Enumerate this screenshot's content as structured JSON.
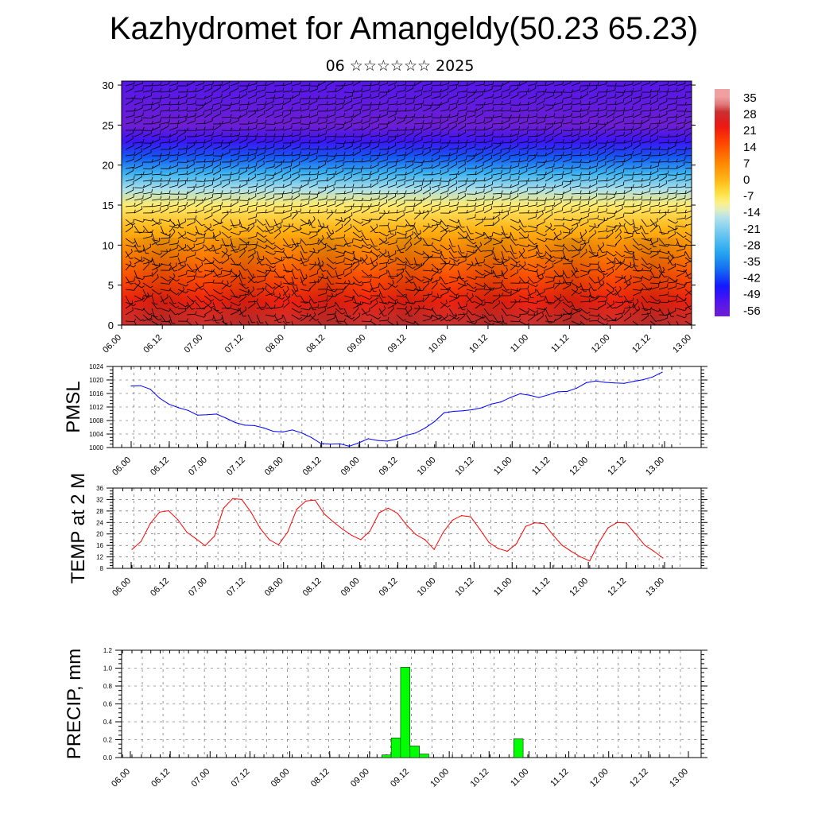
{
  "header": {
    "title": "Kazhydromet for Amangeldy(50.23 65.23)",
    "subtitle": "06 ☆☆☆☆☆☆ 2025"
  },
  "chart_data": [
    {
      "type": "heatmap",
      "title": "",
      "xlabel": "",
      "ylabel": "",
      "x_ticks": [
        "06.00",
        "06.12",
        "07.00",
        "07.12",
        "08.00",
        "08.12",
        "09.00",
        "09.12",
        "10.00",
        "10.12",
        "11.00",
        "11.12",
        "12.00",
        "12.12",
        "13.00"
      ],
      "y_ticks": [
        0,
        5,
        10,
        15,
        20,
        25,
        30
      ],
      "ylim": [
        0,
        30.5
      ],
      "colorbar_labels": [
        35,
        28,
        21,
        14,
        7,
        0,
        -7,
        -14,
        -21,
        -28,
        -35,
        -42,
        -49,
        -56
      ],
      "temperature_by_height": [
        {
          "h": 0,
          "t": 30
        },
        {
          "h": 3,
          "t": 22
        },
        {
          "h": 6,
          "t": 15
        },
        {
          "h": 9,
          "t": 8
        },
        {
          "h": 12,
          "t": 0
        },
        {
          "h": 15,
          "t": -9
        },
        {
          "h": 17,
          "t": -18
        },
        {
          "h": 19,
          "t": -30
        },
        {
          "h": 21,
          "t": -42
        },
        {
          "h": 23,
          "t": -52
        },
        {
          "h": 25,
          "t": -60
        },
        {
          "h": 27,
          "t": -58
        },
        {
          "h": 30.5,
          "t": -55
        }
      ],
      "overlay": "wind barbs"
    },
    {
      "type": "line",
      "ylabel": "PMSL",
      "x_ticks": [
        "06.00",
        "06.12",
        "07.00",
        "07.12",
        "08.00",
        "08.12",
        "09.00",
        "09.12",
        "10.00",
        "10.12",
        "11.00",
        "11.12",
        "12.00",
        "12.12",
        "13.00"
      ],
      "y_ticks": [
        1000,
        1004,
        1008,
        1012,
        1016,
        1020,
        1024
      ],
      "ylim": [
        1000,
        1024
      ],
      "grid": true,
      "color": "#0000ff",
      "values": [
        1018.2,
        1018.3,
        1017.3,
        1014.6,
        1012.8,
        1011.8,
        1011.0,
        1009.6,
        1009.7,
        1009.9,
        1008.7,
        1007.4,
        1006.6,
        1006.5,
        1005.8,
        1004.8,
        1004.6,
        1005.2,
        1004.3,
        1003.0,
        1001.2,
        1001.0,
        1001.1,
        1000.4,
        1001.4,
        1002.6,
        1002.1,
        1001.9,
        1002.5,
        1003.6,
        1004.3,
        1005.8,
        1007.7,
        1010.3,
        1010.7,
        1010.9,
        1011.2,
        1011.8,
        1012.9,
        1013.5,
        1014.8,
        1015.9,
        1015.5,
        1014.8,
        1015.6,
        1016.5,
        1016.6,
        1017.6,
        1019.2,
        1019.7,
        1019.3,
        1019.1,
        1019.0,
        1019.6,
        1020.1,
        1020.9,
        1022.3
      ]
    },
    {
      "type": "line",
      "ylabel": "TEMP at 2 M",
      "x_ticks": [
        "06.00",
        "06.12",
        "07.00",
        "07.12",
        "08.00",
        "08.12",
        "09.00",
        "09.12",
        "10.00",
        "10.12",
        "11.00",
        "11.12",
        "12.00",
        "12.12",
        "13.00"
      ],
      "y_ticks": [
        8,
        12,
        16,
        20,
        24,
        28,
        32,
        36
      ],
      "ylim": [
        8,
        36
      ],
      "grid": true,
      "color": "#ff0000",
      "values": [
        14.6,
        17.4,
        23.6,
        27.6,
        28.1,
        25.0,
        20.6,
        18.3,
        15.9,
        19.2,
        29.0,
        32.3,
        32.0,
        27.6,
        22.0,
        18.0,
        16.2,
        20.6,
        28.6,
        31.5,
        31.8,
        27.0,
        24.2,
        21.7,
        19.5,
        18.0,
        21.0,
        27.4,
        29.0,
        27.2,
        23.1,
        19.8,
        18.0,
        14.6,
        20.6,
        24.8,
        26.4,
        26.0,
        21.6,
        17.0,
        14.9,
        14.0,
        16.6,
        22.6,
        23.9,
        23.6,
        19.6,
        16.0,
        13.9,
        12.0,
        10.6,
        17.0,
        22.1,
        24.0,
        23.8,
        20.0,
        16.1,
        14.0,
        11.6
      ]
    },
    {
      "type": "bar",
      "ylabel": "PRECIP, mm",
      "x_ticks": [
        "06.00",
        "06.12",
        "07.00",
        "07.12",
        "08.00",
        "08.12",
        "09.00",
        "09.12",
        "10.00",
        "10.12",
        "11.00",
        "11.12",
        "12.00",
        "12.12",
        "13.00"
      ],
      "y_ticks": [
        "0.0",
        "0.2",
        "0.4",
        "0.6",
        "0.8",
        "1.0",
        "1.2"
      ],
      "ylim": [
        0,
        1.2
      ],
      "grid": true,
      "color": "#00ff00",
      "values": [
        0,
        0,
        0,
        0,
        0,
        0,
        0,
        0,
        0,
        0,
        0,
        0,
        0,
        0,
        0,
        0,
        0,
        0,
        0,
        0,
        0,
        0,
        0,
        0,
        0,
        0,
        0,
        0.03,
        0.22,
        1.01,
        0.13,
        0.04,
        0,
        0,
        0,
        0,
        0,
        0,
        0,
        0,
        0,
        0.21,
        0,
        0,
        0,
        0,
        0,
        0,
        0,
        0,
        0,
        0,
        0,
        0,
        0,
        0,
        0
      ]
    }
  ]
}
